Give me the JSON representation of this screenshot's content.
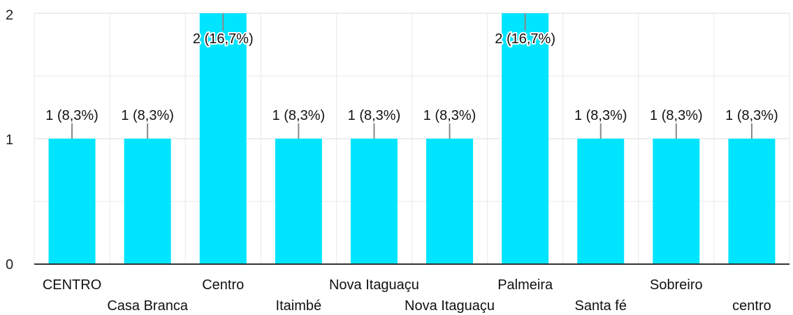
{
  "chart_data": {
    "type": "bar",
    "categories": [
      "CENTRO",
      "Casa Branca",
      "Centro",
      "Itaimbé",
      "Nova Itaguaçu",
      "Nova Itaguaçu",
      "Palmeira",
      "Santa fé",
      "Sobreiro",
      "centro"
    ],
    "values": [
      1,
      1,
      2,
      1,
      1,
      1,
      2,
      1,
      1,
      1
    ],
    "data_labels": [
      "1 (8,3%)",
      "1 (8,3%)",
      "2 (16,7%)",
      "1 (8,3%)",
      "1 (8,3%)",
      "1 (8,3%)",
      "2 (16,7%)",
      "1 (8,3%)",
      "1 (8,3%)",
      "1 (8,3%)"
    ],
    "yticks": [
      "0",
      "1",
      "2"
    ],
    "ylim": [
      0,
      2
    ],
    "grid": true,
    "colors": {
      "bar": "#00E5FF",
      "grid": "#E8E8E8",
      "axis": "#333333",
      "leader": "#888888"
    }
  }
}
